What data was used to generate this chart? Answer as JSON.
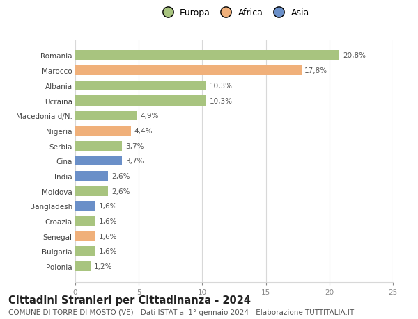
{
  "countries": [
    "Polonia",
    "Bulgaria",
    "Senegal",
    "Croazia",
    "Bangladesh",
    "Moldova",
    "India",
    "Cina",
    "Serbia",
    "Nigeria",
    "Macedonia d/N.",
    "Ucraina",
    "Albania",
    "Marocco",
    "Romania"
  ],
  "values": [
    1.2,
    1.6,
    1.6,
    1.6,
    1.6,
    2.6,
    2.6,
    3.7,
    3.7,
    4.4,
    4.9,
    10.3,
    10.3,
    17.8,
    20.8
  ],
  "labels": [
    "1,2%",
    "1,6%",
    "1,6%",
    "1,6%",
    "1,6%",
    "2,6%",
    "2,6%",
    "3,7%",
    "3,7%",
    "4,4%",
    "4,9%",
    "10,3%",
    "10,3%",
    "17,8%",
    "20,8%"
  ],
  "continents": [
    "Europa",
    "Europa",
    "Africa",
    "Europa",
    "Asia",
    "Europa",
    "Asia",
    "Asia",
    "Europa",
    "Africa",
    "Europa",
    "Europa",
    "Europa",
    "Africa",
    "Europa"
  ],
  "colors": {
    "Europa": "#a8c47f",
    "Africa": "#f0b07a",
    "Asia": "#6a8fc8"
  },
  "legend_labels": [
    "Europa",
    "Africa",
    "Asia"
  ],
  "legend_colors": [
    "#a8c47f",
    "#f0b07a",
    "#6a8fc8"
  ],
  "title": "Cittadini Stranieri per Cittadinanza - 2024",
  "subtitle": "COMUNE DI TORRE DI MOSTO (VE) - Dati ISTAT al 1° gennaio 2024 - Elaborazione TUTTITALIA.IT",
  "xlim": [
    0,
    25
  ],
  "xticks": [
    0,
    5,
    10,
    15,
    20,
    25
  ],
  "background_color": "#ffffff",
  "grid_color": "#d8d8d8",
  "bar_height": 0.65,
  "title_fontsize": 10.5,
  "subtitle_fontsize": 7.5,
  "label_fontsize": 7.5,
  "tick_fontsize": 7.5,
  "legend_fontsize": 9
}
